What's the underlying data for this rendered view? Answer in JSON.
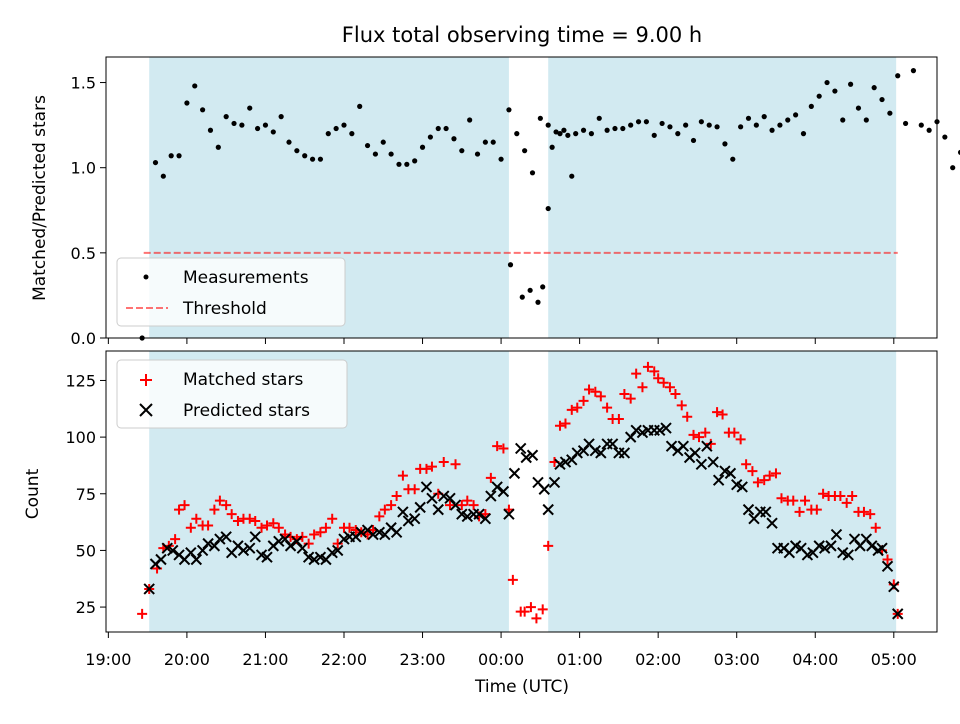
{
  "chart_data": {
    "title": "Flux total observing time = 9.00 h",
    "xlabel": "Time (UTC)",
    "x_ticks": [
      "19:00",
      "20:00",
      "21:00",
      "22:00",
      "23:00",
      "00:00",
      "01:00",
      "02:00",
      "03:00",
      "04:00",
      "05:00"
    ],
    "x_range_hours": [
      18.97,
      29.55
    ],
    "observing_windows_hours": [
      [
        19.52,
        24.1
      ],
      [
        24.6,
        29.03
      ]
    ],
    "colors": {
      "window": "#add8e6",
      "matched": "#ff0000",
      "predicted": "#000000",
      "threshold": "#ff0000",
      "measurement": "#000000"
    },
    "top": {
      "type": "scatter",
      "ylabel": "Matched/Predicted stars",
      "ylim": [
        0.0,
        1.65
      ],
      "yticks": [
        "0.0",
        "0.5",
        "1.0",
        "1.5"
      ],
      "threshold": 0.5,
      "threshold_x_range": [
        19.45,
        29.05
      ],
      "legend": {
        "position": "lower-left",
        "measurements": "Measurements",
        "threshold": "Threshold"
      },
      "series_x_start": 19.6,
      "series_x_step": 0.1,
      "series_y": [
        1.03,
        0.95,
        1.07,
        1.07,
        1.38,
        1.48,
        1.34,
        1.22,
        1.12,
        1.3,
        1.26,
        1.25,
        1.35,
        1.23,
        1.25,
        1.21,
        1.3,
        1.15,
        1.1,
        1.07,
        1.05,
        1.05,
        1.2,
        1.23,
        1.25,
        1.2,
        1.36,
        1.13,
        1.08,
        1.15,
        1.08,
        1.02,
        1.02,
        1.04,
        1.12,
        1.18,
        1.23,
        1.23,
        1.17,
        1.1,
        1.28,
        1.08,
        1.15,
        1.15,
        1.05,
        1.34,
        1.2,
        1.1,
        0.97,
        1.29,
        1.25,
        1.21,
        1.22,
        0.95
      ],
      "series2_x_start": 24.65,
      "series2_x_step": 0.1,
      "series2_y": [
        1.12,
        1.2,
        1.19,
        1.2,
        1.22,
        1.2,
        1.29,
        1.22,
        1.23,
        1.23,
        1.25,
        1.27,
        1.27,
        1.19,
        1.26,
        1.24,
        1.2,
        1.25,
        1.16,
        1.27,
        1.25,
        1.24,
        1.14,
        1.05,
        1.24,
        1.29,
        1.25,
        1.3,
        1.22,
        1.25,
        1.28,
        1.31,
        1.2,
        1.36,
        1.42,
        1.5,
        1.45,
        1.28,
        1.49,
        1.35,
        1.28,
        1.47,
        1.4,
        1.32,
        1.54,
        1.26,
        1.57,
        1.25,
        1.22,
        1.27,
        1.18,
        1.0,
        1.09,
        1.08,
        1.0
      ],
      "gap_points": [
        [
          19.43,
          0.0
        ],
        [
          24.12,
          0.43
        ],
        [
          24.27,
          0.24
        ],
        [
          24.37,
          0.28
        ],
        [
          24.47,
          0.21
        ],
        [
          24.53,
          0.3
        ],
        [
          24.6,
          0.76
        ]
      ]
    },
    "bottom": {
      "type": "scatter",
      "ylabel": "Count",
      "ylim": [
        14,
        138
      ],
      "yticks": [
        "25",
        "50",
        "75",
        "100",
        "125"
      ],
      "legend": {
        "position": "upper-left",
        "matched": "Matched stars",
        "predicted": "Predicted stars"
      },
      "matched": [
        [
          19.43,
          22
        ],
        [
          19.52,
          33
        ],
        [
          19.62,
          42
        ],
        [
          19.7,
          51
        ],
        [
          19.77,
          52
        ],
        [
          19.85,
          55
        ],
        [
          19.9,
          68
        ],
        [
          19.97,
          70
        ],
        [
          20.05,
          60
        ],
        [
          20.12,
          64
        ],
        [
          20.2,
          61
        ],
        [
          20.27,
          61
        ],
        [
          20.35,
          68
        ],
        [
          20.42,
          72
        ],
        [
          20.5,
          70
        ],
        [
          20.57,
          66
        ],
        [
          20.65,
          63
        ],
        [
          20.72,
          64
        ],
        [
          20.8,
          64
        ],
        [
          20.87,
          63
        ],
        [
          20.95,
          60
        ],
        [
          21.02,
          61
        ],
        [
          21.1,
          62
        ],
        [
          21.17,
          60
        ],
        [
          21.25,
          57
        ],
        [
          21.32,
          56
        ],
        [
          21.4,
          55
        ],
        [
          21.47,
          56
        ],
        [
          21.55,
          53
        ],
        [
          21.62,
          57
        ],
        [
          21.7,
          58
        ],
        [
          21.77,
          60
        ],
        [
          21.85,
          64
        ],
        [
          21.92,
          53
        ],
        [
          22.0,
          60
        ],
        [
          22.07,
          60
        ],
        [
          22.15,
          59
        ],
        [
          22.22,
          58
        ],
        [
          22.3,
          57
        ],
        [
          22.37,
          59
        ],
        [
          22.45,
          65
        ],
        [
          22.52,
          68
        ],
        [
          22.6,
          70
        ],
        [
          22.67,
          74
        ],
        [
          22.75,
          83
        ],
        [
          22.82,
          77
        ],
        [
          22.9,
          77
        ],
        [
          22.97,
          86
        ],
        [
          23.05,
          86
        ],
        [
          23.12,
          87
        ],
        [
          23.2,
          75
        ],
        [
          23.27,
          89
        ],
        [
          23.35,
          70
        ],
        [
          23.42,
          88
        ],
        [
          23.5,
          70
        ],
        [
          23.57,
          72
        ],
        [
          23.65,
          70
        ],
        [
          23.72,
          65
        ],
        [
          23.8,
          66
        ],
        [
          23.87,
          82
        ],
        [
          23.95,
          96
        ],
        [
          24.03,
          95
        ],
        [
          24.1,
          68
        ],
        [
          24.15,
          37
        ],
        [
          24.25,
          23
        ],
        [
          24.3,
          23
        ],
        [
          24.38,
          25
        ],
        [
          24.45,
          20
        ],
        [
          24.53,
          24
        ],
        [
          24.6,
          52
        ],
        [
          24.68,
          89
        ],
        [
          24.75,
          105
        ],
        [
          24.82,
          106
        ],
        [
          24.9,
          112
        ],
        [
          24.97,
          113
        ],
        [
          25.05,
          116
        ],
        [
          25.12,
          121
        ],
        [
          25.2,
          120
        ],
        [
          25.27,
          118
        ],
        [
          25.35,
          113
        ],
        [
          25.42,
          108
        ],
        [
          25.5,
          108
        ],
        [
          25.57,
          119
        ],
        [
          25.65,
          117
        ],
        [
          25.72,
          128
        ],
        [
          25.8,
          122
        ],
        [
          25.87,
          131
        ],
        [
          25.95,
          129
        ],
        [
          26.0,
          126
        ],
        [
          26.07,
          124
        ],
        [
          26.15,
          122
        ],
        [
          26.22,
          119
        ],
        [
          26.3,
          114
        ],
        [
          26.37,
          109
        ],
        [
          26.45,
          101
        ],
        [
          26.52,
          100
        ],
        [
          26.6,
          102
        ],
        [
          26.67,
          97
        ],
        [
          26.75,
          111
        ],
        [
          26.82,
          110
        ],
        [
          26.9,
          102
        ],
        [
          26.97,
          102
        ],
        [
          27.05,
          99
        ],
        [
          27.12,
          88
        ],
        [
          27.2,
          85
        ],
        [
          27.27,
          80
        ],
        [
          27.35,
          81
        ],
        [
          27.42,
          83
        ],
        [
          27.5,
          84
        ],
        [
          27.57,
          73
        ],
        [
          27.65,
          72
        ],
        [
          27.72,
          72
        ],
        [
          27.8,
          67
        ],
        [
          27.87,
          72
        ],
        [
          27.95,
          68
        ],
        [
          28.02,
          68
        ],
        [
          28.1,
          75
        ],
        [
          28.17,
          74
        ],
        [
          28.25,
          74
        ],
        [
          28.32,
          74
        ],
        [
          28.4,
          71
        ],
        [
          28.47,
          74
        ],
        [
          28.55,
          67
        ],
        [
          28.62,
          67
        ],
        [
          28.7,
          66
        ],
        [
          28.77,
          60
        ],
        [
          28.85,
          50
        ],
        [
          28.92,
          46
        ],
        [
          29.0,
          35
        ],
        [
          29.05,
          22
        ]
      ],
      "predicted": [
        [
          19.52,
          33
        ],
        [
          19.6,
          44
        ],
        [
          19.67,
          46
        ],
        [
          19.75,
          51
        ],
        [
          19.82,
          50
        ],
        [
          19.9,
          48
        ],
        [
          19.97,
          46
        ],
        [
          20.05,
          49
        ],
        [
          20.12,
          46
        ],
        [
          20.2,
          50
        ],
        [
          20.27,
          53
        ],
        [
          20.35,
          52
        ],
        [
          20.42,
          55
        ],
        [
          20.5,
          56
        ],
        [
          20.57,
          49
        ],
        [
          20.65,
          52
        ],
        [
          20.72,
          50
        ],
        [
          20.8,
          51
        ],
        [
          20.87,
          56
        ],
        [
          20.95,
          48
        ],
        [
          21.02,
          47
        ],
        [
          21.1,
          52
        ],
        [
          21.17,
          54
        ],
        [
          21.25,
          55
        ],
        [
          21.32,
          52
        ],
        [
          21.4,
          54
        ],
        [
          21.47,
          51
        ],
        [
          21.55,
          47
        ],
        [
          21.62,
          46
        ],
        [
          21.7,
          47
        ],
        [
          21.77,
          46
        ],
        [
          21.85,
          49
        ],
        [
          21.92,
          50
        ],
        [
          22.0,
          55
        ],
        [
          22.07,
          56
        ],
        [
          22.15,
          56
        ],
        [
          22.22,
          58
        ],
        [
          22.3,
          59
        ],
        [
          22.37,
          57
        ],
        [
          22.45,
          58
        ],
        [
          22.52,
          57
        ],
        [
          22.6,
          60
        ],
        [
          22.67,
          58
        ],
        [
          22.75,
          67
        ],
        [
          22.82,
          63
        ],
        [
          22.9,
          64
        ],
        [
          22.97,
          69
        ],
        [
          23.05,
          78
        ],
        [
          23.12,
          73
        ],
        [
          23.2,
          68
        ],
        [
          23.27,
          74
        ],
        [
          23.35,
          73
        ],
        [
          23.42,
          70
        ],
        [
          23.5,
          66
        ],
        [
          23.57,
          65
        ],
        [
          23.65,
          66
        ],
        [
          23.72,
          66
        ],
        [
          23.8,
          64
        ],
        [
          23.87,
          74
        ],
        [
          23.95,
          78
        ],
        [
          24.03,
          76
        ],
        [
          24.1,
          66
        ],
        [
          24.17,
          84
        ],
        [
          24.25,
          95
        ],
        [
          24.32,
          91
        ],
        [
          24.4,
          92
        ],
        [
          24.47,
          80
        ],
        [
          24.55,
          77
        ],
        [
          24.6,
          68
        ],
        [
          24.68,
          80
        ],
        [
          24.75,
          88
        ],
        [
          24.82,
          89
        ],
        [
          24.9,
          90
        ],
        [
          24.97,
          93
        ],
        [
          25.05,
          94
        ],
        [
          25.12,
          97
        ],
        [
          25.2,
          94
        ],
        [
          25.27,
          93
        ],
        [
          25.35,
          97
        ],
        [
          25.42,
          97
        ],
        [
          25.5,
          93
        ],
        [
          25.57,
          93
        ],
        [
          25.65,
          100
        ],
        [
          25.72,
          103
        ],
        [
          25.8,
          102
        ],
        [
          25.87,
          103
        ],
        [
          25.95,
          103
        ],
        [
          26.02,
          103
        ],
        [
          26.1,
          104
        ],
        [
          26.17,
          96
        ],
        [
          26.25,
          94
        ],
        [
          26.32,
          96
        ],
        [
          26.4,
          91
        ],
        [
          26.47,
          93
        ],
        [
          26.55,
          88
        ],
        [
          26.62,
          96
        ],
        [
          26.7,
          89
        ],
        [
          26.77,
          81
        ],
        [
          26.85,
          85
        ],
        [
          26.92,
          84
        ],
        [
          27.0,
          79
        ],
        [
          27.07,
          78
        ],
        [
          27.15,
          68
        ],
        [
          27.22,
          64
        ],
        [
          27.3,
          67
        ],
        [
          27.37,
          67
        ],
        [
          27.45,
          62
        ],
        [
          27.52,
          51
        ],
        [
          27.6,
          51
        ],
        [
          27.67,
          49
        ],
        [
          27.75,
          52
        ],
        [
          27.82,
          51
        ],
        [
          27.9,
          48
        ],
        [
          27.97,
          49
        ],
        [
          28.05,
          52
        ],
        [
          28.12,
          51
        ],
        [
          28.2,
          52
        ],
        [
          28.27,
          57
        ],
        [
          28.35,
          49
        ],
        [
          28.42,
          48
        ],
        [
          28.5,
          55
        ],
        [
          28.57,
          52
        ],
        [
          28.65,
          55
        ],
        [
          28.72,
          52
        ],
        [
          28.8,
          50
        ],
        [
          28.85,
          51
        ],
        [
          28.92,
          43
        ],
        [
          29.0,
          34
        ],
        [
          29.05,
          22
        ]
      ]
    }
  }
}
